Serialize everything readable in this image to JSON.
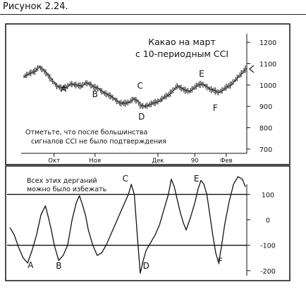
{
  "figure_label": "Рисунок 2.24.",
  "chart_data": [
    {
      "type": "bar",
      "subtype": "ohlc-price",
      "title_lines": [
        "Какао на март",
        "с 10-периодным CCI"
      ],
      "note_lines": [
        "Отметьте, что после большинства",
        "сигналов CCI не было подтверждения"
      ],
      "x_tick_labels": [
        "Окт",
        "Ноя",
        "Дек",
        "90",
        "Фев"
      ],
      "y_ticks": [
        1200,
        1100,
        1000,
        900,
        800,
        700
      ],
      "ylim": [
        680,
        1240
      ],
      "grid": false,
      "price_path": [
        [
          0,
          1040
        ],
        [
          4,
          1055
        ],
        [
          8,
          1065
        ],
        [
          11,
          1085
        ],
        [
          14,
          1070
        ],
        [
          17,
          1050
        ],
        [
          20,
          1025
        ],
        [
          24,
          995
        ],
        [
          28,
          985
        ],
        [
          31,
          990
        ],
        [
          34,
          1005
        ],
        [
          38,
          1000
        ],
        [
          42,
          995
        ],
        [
          45,
          1010
        ],
        [
          48,
          1005
        ],
        [
          51,
          990
        ],
        [
          54,
          985
        ],
        [
          58,
          965
        ],
        [
          61,
          955
        ],
        [
          64,
          945
        ],
        [
          67,
          930
        ],
        [
          70,
          915
        ],
        [
          74,
          915
        ],
        [
          77,
          920
        ],
        [
          80,
          935
        ],
        [
          83,
          925
        ],
        [
          85,
          905
        ],
        [
          88,
          900
        ],
        [
          91,
          905
        ],
        [
          94,
          915
        ],
        [
          97,
          920
        ],
        [
          100,
          930
        ],
        [
          103,
          945
        ],
        [
          106,
          955
        ],
        [
          109,
          975
        ],
        [
          112,
          995
        ],
        [
          115,
          985
        ],
        [
          118,
          975
        ],
        [
          121,
          970
        ],
        [
          124,
          985
        ],
        [
          127,
          1000
        ],
        [
          130,
          1005
        ],
        [
          133,
          995
        ],
        [
          136,
          980
        ],
        [
          139,
          975
        ],
        [
          142,
          965
        ],
        [
          145,
          975
        ],
        [
          148,
          990
        ],
        [
          151,
          1000
        ],
        [
          154,
          1020
        ],
        [
          157,
          1040
        ],
        [
          160,
          1060
        ],
        [
          162,
          1075
        ]
      ],
      "annotations": [
        {
          "label": "A",
          "x": 29,
          "y": 985
        },
        {
          "label": "B",
          "x": 52,
          "y": 960
        },
        {
          "label": "C",
          "x": 85,
          "y": 1000
        },
        {
          "label": "D",
          "x": 86,
          "y": 855
        },
        {
          "label": "E",
          "x": 130,
          "y": 1055
        },
        {
          "label": "F",
          "x": 140,
          "y": 895
        }
      ]
    },
    {
      "type": "line",
      "name": "CCI",
      "note_lines": [
        "Всех этих дерганий",
        "можно было избежать"
      ],
      "y_ticks": [
        100,
        0,
        -100,
        -200
      ],
      "ylim": [
        -220,
        140
      ],
      "reference_lines": [
        100,
        -100
      ],
      "grid": false,
      "points": [
        [
          0,
          -30
        ],
        [
          3,
          -60
        ],
        [
          6,
          -110
        ],
        [
          9,
          -150
        ],
        [
          12,
          -170
        ],
        [
          15,
          -120
        ],
        [
          18,
          -60
        ],
        [
          21,
          20
        ],
        [
          24,
          55
        ],
        [
          26,
          10
        ],
        [
          28,
          -40
        ],
        [
          30,
          -100
        ],
        [
          33,
          -160
        ],
        [
          36,
          -140
        ],
        [
          39,
          -100
        ],
        [
          42,
          0
        ],
        [
          45,
          70
        ],
        [
          47,
          95
        ],
        [
          49,
          60
        ],
        [
          51,
          20
        ],
        [
          53,
          -40
        ],
        [
          56,
          -100
        ],
        [
          59,
          -140
        ],
        [
          62,
          -130
        ],
        [
          65,
          -100
        ],
        [
          68,
          -60
        ],
        [
          71,
          -20
        ],
        [
          74,
          20
        ],
        [
          77,
          60
        ],
        [
          80,
          100
        ],
        [
          82,
          140
        ],
        [
          84,
          100
        ],
        [
          86,
          -60
        ],
        [
          88,
          -210
        ],
        [
          90,
          -160
        ],
        [
          92,
          -120
        ],
        [
          95,
          -90
        ],
        [
          98,
          -60
        ],
        [
          101,
          -20
        ],
        [
          104,
          40
        ],
        [
          107,
          100
        ],
        [
          109,
          160
        ],
        [
          111,
          130
        ],
        [
          113,
          80
        ],
        [
          115,
          30
        ],
        [
          117,
          -10
        ],
        [
          119,
          -40
        ],
        [
          122,
          10
        ],
        [
          125,
          70
        ],
        [
          127,
          120
        ],
        [
          129,
          155
        ],
        [
          131,
          140
        ],
        [
          133,
          100
        ],
        [
          135,
          20
        ],
        [
          137,
          -60
        ],
        [
          139,
          -130
        ],
        [
          141,
          -170
        ],
        [
          143,
          -100
        ],
        [
          145,
          -20
        ],
        [
          148,
          70
        ],
        [
          151,
          140
        ],
        [
          154,
          170
        ],
        [
          157,
          160
        ],
        [
          159,
          130
        ]
      ],
      "annotations": [
        {
          "label": "A",
          "x": 14,
          "y": -175
        },
        {
          "label": "B",
          "x": 33,
          "y": -178
        },
        {
          "label": "C",
          "x": 78,
          "y": 165
        },
        {
          "label": "D",
          "x": 92,
          "y": -178
        },
        {
          "label": "E",
          "x": 126,
          "y": 165
        },
        {
          "label": "F",
          "x": 142,
          "y": -160
        }
      ]
    }
  ]
}
